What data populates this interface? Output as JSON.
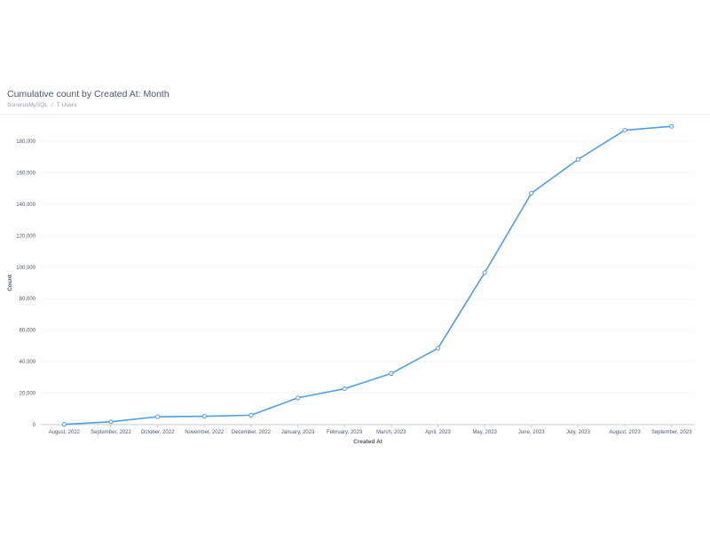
{
  "header": {
    "title": "Cumulative count by Created At: Month",
    "breadcrumb": [
      "SonorusMySQL",
      "T Users"
    ],
    "breadcrumb_separator": "/"
  },
  "colors": {
    "line": "#509ee3",
    "grid": "#eceff2",
    "axis": "#c7cbd1",
    "text": "#4c5773"
  },
  "chart_data": {
    "type": "line",
    "categories": [
      "August, 2022",
      "September, 2022",
      "October, 2022",
      "November, 2022",
      "December, 2022",
      "January, 2023",
      "February, 2023",
      "March, 2023",
      "April, 2023",
      "May, 2023",
      "June, 2023",
      "July, 2023",
      "August, 2023",
      "September, 2023"
    ],
    "series": [
      {
        "values": [
          200,
          1800,
          5000,
          5300,
          6000,
          17000,
          22800,
          32500,
          48500,
          96500,
          147000,
          168500,
          187000,
          189500
        ]
      }
    ],
    "xlabel": "Created At",
    "ylabel": "Count",
    "ylim": [
      0,
      180000
    ],
    "y_ticks": [
      0,
      20000,
      40000,
      60000,
      80000,
      100000,
      120000,
      140000,
      160000,
      180000
    ],
    "y_tick_labels": [
      "0",
      "20,000",
      "40,000",
      "60,000",
      "80,000",
      "100,000",
      "120,000",
      "140,000",
      "160,000",
      "180,000"
    ],
    "grid": true,
    "legend": "none",
    "markers": "hollow-circles"
  }
}
